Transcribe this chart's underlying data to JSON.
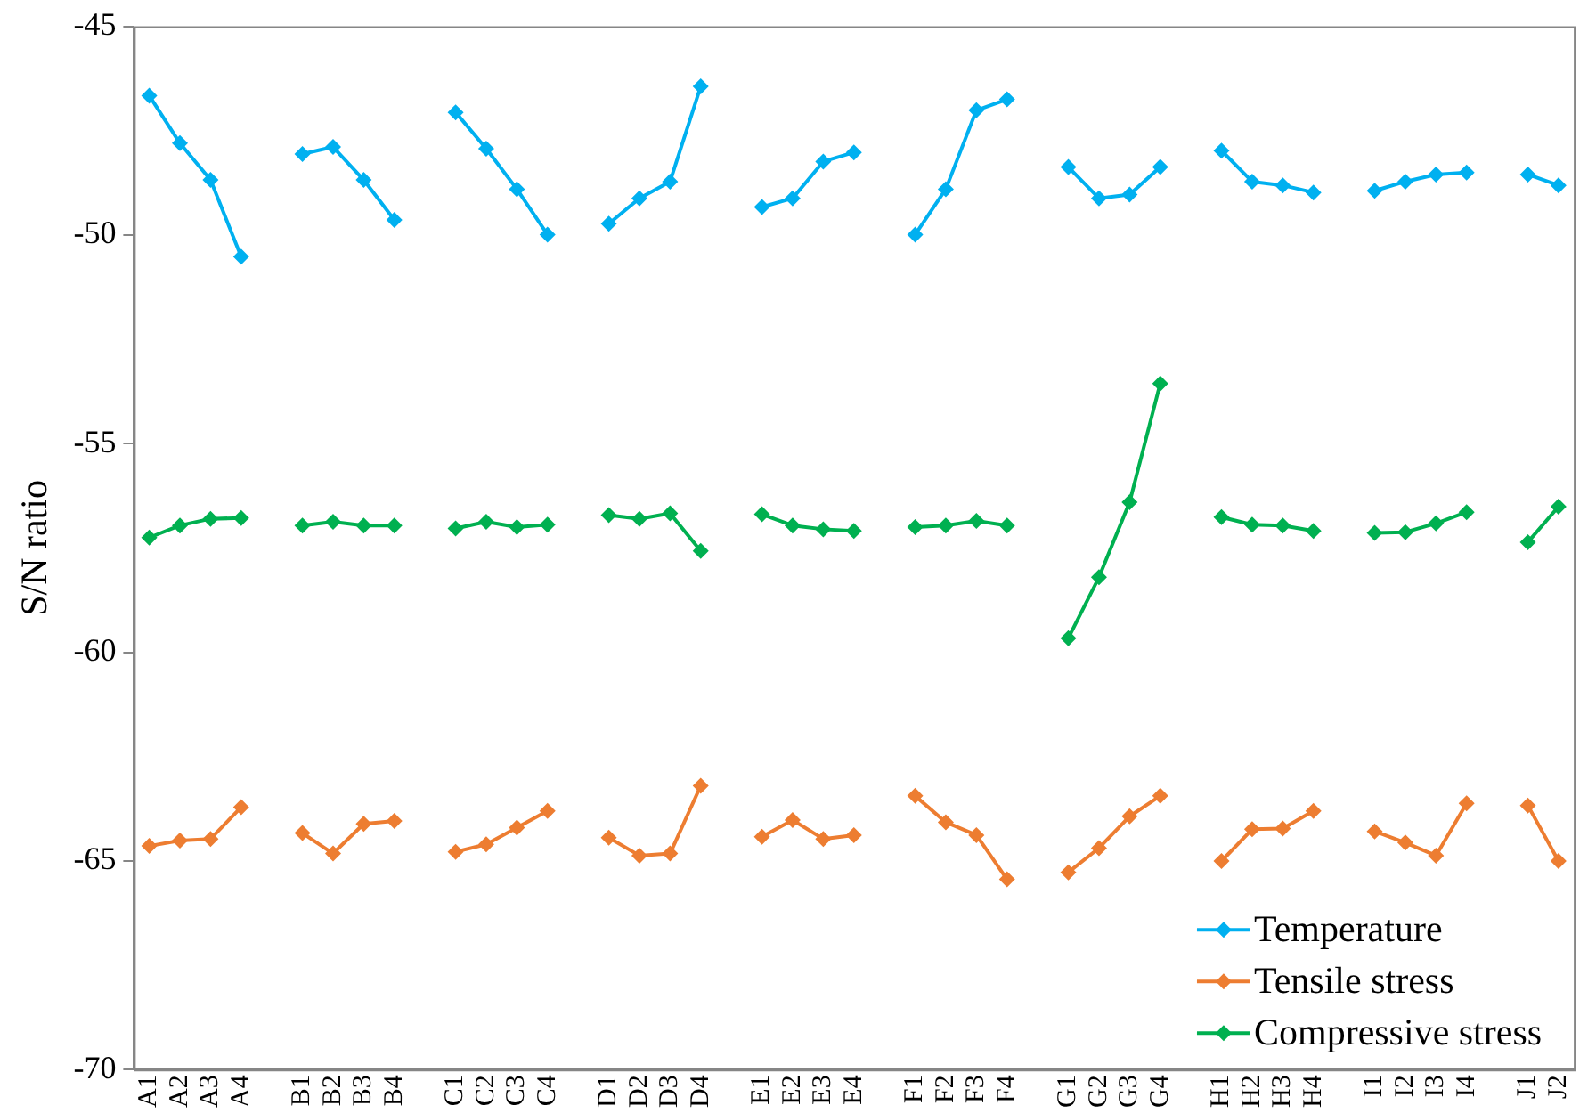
{
  "chart_data": {
    "type": "line",
    "ylabel": "S/N ratio",
    "categories": [
      "A1",
      "A2",
      "A3",
      "A4",
      null,
      "B1",
      "B2",
      "B3",
      "B4",
      null,
      "C1",
      "C2",
      "C3",
      "C4",
      null,
      "D1",
      "D2",
      "D3",
      "D4",
      null,
      "E1",
      "E2",
      "E3",
      "E4",
      null,
      "F1",
      "F2",
      "F3",
      "F4",
      null,
      "G1",
      "G2",
      "G3",
      "G4",
      null,
      "H1",
      "H2",
      "H3",
      "H4",
      null,
      "I1",
      "I2",
      "I3",
      "I4",
      null,
      "J1",
      "J2"
    ],
    "series": [
      {
        "name": "Temperature",
        "color": "#00b0f0",
        "values": [
          -46.66,
          -47.8,
          -48.68,
          -50.52,
          null,
          -48.06,
          -47.89,
          -48.68,
          -49.64,
          null,
          -47.06,
          -47.93,
          -48.9,
          -49.99,
          null,
          -49.73,
          -49.12,
          -48.72,
          -46.44,
          null,
          -49.33,
          -49.12,
          -48.24,
          -48.02,
          null,
          -49.99,
          -48.9,
          -47.01,
          -46.75,
          null,
          -48.37,
          -49.12,
          -49.03,
          -48.37,
          null,
          -47.98,
          -48.72,
          -48.81,
          -48.98,
          null,
          -48.94,
          -48.72,
          -48.55,
          -48.5,
          null,
          -48.55,
          -48.81
        ]
      },
      {
        "name": "Tensile stress",
        "color": "#ed7d31",
        "values": [
          -64.64,
          -64.51,
          -64.47,
          -63.71,
          null,
          -64.33,
          -64.82,
          -64.11,
          -64.04,
          null,
          -64.78,
          -64.6,
          -64.2,
          -63.8,
          null,
          -64.44,
          -64.87,
          -64.82,
          -63.2,
          null,
          -64.42,
          -64.02,
          -64.47,
          -64.38,
          null,
          -63.44,
          -64.07,
          -64.38,
          -65.44,
          null,
          -65.27,
          -64.69,
          -63.93,
          -63.44,
          null,
          -65.0,
          -64.24,
          -64.22,
          -63.8,
          null,
          -64.29,
          -64.56,
          -64.87,
          -63.62,
          null,
          -63.67,
          -65.0
        ]
      },
      {
        "name": "Compressive stress",
        "color": "#00b050",
        "values": [
          -57.25,
          -56.96,
          -56.8,
          -56.78,
          null,
          -56.96,
          -56.87,
          -56.96,
          -56.96,
          null,
          -57.03,
          -56.87,
          -57.0,
          -56.94,
          null,
          -56.71,
          -56.8,
          -56.67,
          -57.57,
          null,
          -56.69,
          -56.96,
          -57.05,
          -57.09,
          null,
          -57.0,
          -56.96,
          -56.85,
          -56.96,
          null,
          -59.66,
          -58.2,
          -56.4,
          -53.56,
          null,
          -56.76,
          -56.94,
          -56.96,
          -57.09,
          null,
          -57.14,
          -57.12,
          -56.91,
          -56.64,
          null,
          -57.36,
          -56.51
        ]
      }
    ],
    "ylim": [
      -70,
      -45
    ],
    "yticks": [
      -70,
      -65,
      -60,
      -55,
      -50,
      -45
    ],
    "grid": false,
    "legend": "bottom right",
    "marker": "diamond",
    "line_style": "solid"
  }
}
